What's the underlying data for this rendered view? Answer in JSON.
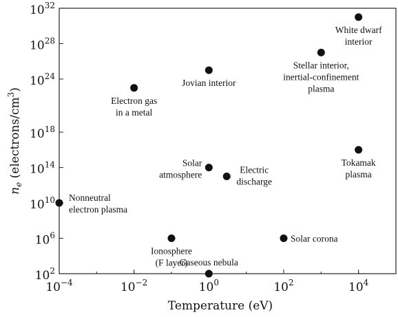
{
  "chart_data": {
    "type": "scatter",
    "xlabel": "Temperature (eV)",
    "ylabel": "n_e (electrons/cm^3)",
    "xscale": "log",
    "yscale": "log",
    "xlim": [
      0.0001,
      100000
    ],
    "ylim": [
      100,
      1e+32
    ],
    "x_ticks": [
      {
        "base": "10",
        "exp": "−4",
        "value": 0.0001
      },
      {
        "base": "10",
        "exp": "−2",
        "value": 0.01
      },
      {
        "base": "10",
        "exp": "0",
        "value": 1
      },
      {
        "base": "10",
        "exp": "2",
        "value": 100
      },
      {
        "base": "10",
        "exp": "4",
        "value": 10000
      }
    ],
    "y_ticks": [
      {
        "base": "10",
        "exp": "2",
        "value": 100
      },
      {
        "base": "10",
        "exp": "6",
        "value": 1000000.0
      },
      {
        "base": "10",
        "exp": "10",
        "value": 10000000000.0
      },
      {
        "base": "10",
        "exp": "14",
        "value": 100000000000000.0
      },
      {
        "base": "10",
        "exp": "18",
        "value": 1e+18
      },
      {
        "base": "10",
        "exp": "24",
        "value": 1e+24
      },
      {
        "base": "10",
        "exp": "28",
        "value": 1e+28
      },
      {
        "base": "10",
        "exp": "32",
        "value": 1e+32
      }
    ],
    "grid": false,
    "points": [
      {
        "name": "nonneutral-electron-plasma",
        "x": 0.0001,
        "y": 10000000000.0,
        "label": [
          "Nonneutral",
          "electron plasma"
        ],
        "anchor": "start",
        "pos": "right"
      },
      {
        "name": "electron-gas-in-metal",
        "x": 0.01,
        "y": 1e+23,
        "label": [
          "Electron gas",
          "in a metal"
        ],
        "anchor": "middle",
        "pos": "below"
      },
      {
        "name": "ionosphere",
        "x": 0.1,
        "y": 1000000.0,
        "label": [
          "Ionosphere",
          "(F layer)"
        ],
        "anchor": "middle",
        "pos": "below"
      },
      {
        "name": "jovian-interior",
        "x": 1,
        "y": 1e+25,
        "label": [
          "Jovian interior"
        ],
        "anchor": "middle",
        "pos": "below"
      },
      {
        "name": "solar-atmosphere",
        "x": 1,
        "y": 100000000000000.0,
        "label": [
          "Solar",
          "atmosphere"
        ],
        "anchor": "end",
        "pos": "left"
      },
      {
        "name": "gaseous-nebula",
        "x": 1,
        "y": 100,
        "label": [
          "Gaseous nebula"
        ],
        "anchor": "middle",
        "pos": "above"
      },
      {
        "name": "electric-discharge",
        "x": 3,
        "y": 10000000000000.0,
        "label": [
          "Electric",
          "discharge"
        ],
        "anchor": "middle",
        "pos": "right"
      },
      {
        "name": "solar-corona",
        "x": 100,
        "y": 1000000.0,
        "label": [
          "Solar corona"
        ],
        "anchor": "start",
        "pos": "right"
      },
      {
        "name": "stellar-interior",
        "x": 1000,
        "y": 1e+27,
        "label": [
          "Stellar interior,",
          "inertial-confinement",
          "plasma"
        ],
        "anchor": "middle",
        "pos": "below"
      },
      {
        "name": "white-dwarf-interior",
        "x": 10000,
        "y": 1e+31,
        "label": [
          "White dwarf",
          "interior"
        ],
        "anchor": "middle",
        "pos": "below"
      },
      {
        "name": "tokamak-plasma",
        "x": 10000,
        "y": 1e+16,
        "label": [
          "Tokamak",
          "plasma"
        ],
        "anchor": "middle",
        "pos": "below"
      }
    ]
  }
}
